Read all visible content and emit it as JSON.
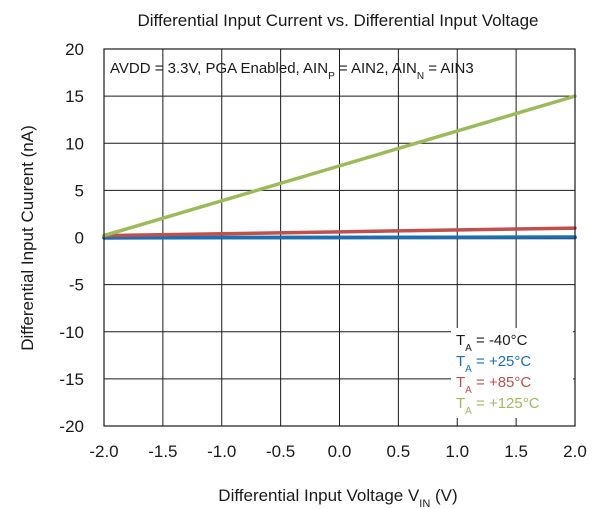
{
  "chart_data": {
    "type": "line",
    "title": "Differential Input Current vs. Differential Input Voltage",
    "xlabel": {
      "main": "Differential Input Voltage V",
      "sub": "IN",
      "tail": " (V)"
    },
    "ylabel": "Differential Input Cuurent (nA)",
    "xlim": [
      -2.0,
      2.0
    ],
    "ylim": [
      -20,
      20
    ],
    "x_ticks": [
      -2.0,
      -1.5,
      -1.0,
      -0.5,
      0.0,
      0.5,
      1.0,
      1.5,
      2.0
    ],
    "y_ticks": [
      -20,
      -15,
      -10,
      -5,
      0,
      5,
      10,
      15,
      20
    ],
    "x_tick_labels": [
      "-2.0",
      "-1.5",
      "-1.0",
      "-0.5",
      "0.0",
      "0.5",
      "1.0",
      "1.5",
      "2.0"
    ],
    "y_tick_labels": [
      "-20",
      "-15",
      "-10",
      "-5",
      "0",
      "5",
      "10",
      "15",
      "20"
    ],
    "grid": true,
    "annotation": {
      "parts": [
        {
          "text": "AVDD = 3.3V, PGA Enabled, AIN"
        },
        {
          "text": "P",
          "sub": true
        },
        {
          "text": " = AIN2, AIN"
        },
        {
          "text": "N",
          "sub": true
        },
        {
          "text": " = AIN3"
        }
      ]
    },
    "legend_position": "bottom-right",
    "series": [
      {
        "name": {
          "pre": "T",
          "sub": "A",
          "post": " = -40°C"
        },
        "color": "#1a1a1a",
        "x": [
          -2.0,
          0.0,
          2.0
        ],
        "y": [
          0.0,
          0.0,
          0.0
        ]
      },
      {
        "name": {
          "pre": "T",
          "sub": "A",
          "post": " = +25°C"
        },
        "color": "#1a6fb5",
        "x": [
          -2.0,
          0.0,
          2.0
        ],
        "y": [
          -0.05,
          0.0,
          0.05
        ]
      },
      {
        "name": {
          "pre": "T",
          "sub": "A",
          "post": " = +85°C"
        },
        "color": "#c0504d",
        "x": [
          -2.0,
          0.0,
          2.0
        ],
        "y": [
          0.2,
          0.6,
          1.0
        ]
      },
      {
        "name": {
          "pre": "T",
          "sub": "A",
          "post": " = +125°C"
        },
        "color": "#9bbb59",
        "x": [
          -2.0,
          0.0,
          2.0
        ],
        "y": [
          0.2,
          7.6,
          15.0
        ]
      }
    ]
  }
}
